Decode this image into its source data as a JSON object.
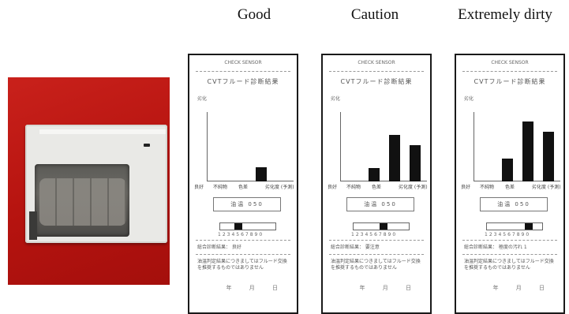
{
  "columns": [
    {
      "title": "Good"
    },
    {
      "title": "Caution"
    },
    {
      "title": "Extremely dirty"
    }
  ],
  "receipts": [
    {
      "header": "CHECK SENSOR",
      "title": "CVTフルード診断結果",
      "subtitle": "劣化",
      "x_labels": [
        "良好",
        "不純物",
        "色差",
        "劣化度 (予測)"
      ],
      "bar_levels": [
        0,
        0,
        0.22,
        0
      ],
      "code": "油温 050",
      "gauge_level": 0.3,
      "gauge_nums": "1234567890",
      "verdict": "総合診断結果： 良好",
      "note": "油温判定結果につきましてはフルード交換を推奨するものではありません",
      "date": "年 月 日"
    },
    {
      "header": "CHECK SENSOR",
      "title": "CVTフルード診断結果",
      "subtitle": "劣化",
      "x_labels": [
        "良好",
        "不純物",
        "色差",
        "劣化度 (予測)"
      ],
      "bar_levels": [
        0,
        0.2,
        0.7,
        0.55
      ],
      "code": "油温 050",
      "gauge_level": 0.55,
      "gauge_nums": "1234567890",
      "verdict": "総合診断結果： 要注意",
      "note": "油温判定結果につきましてはフルード交換を推奨するものではありません",
      "date": "年 月 日"
    },
    {
      "header": "CHECK SENSOR",
      "title": "CVTフルード診断結果",
      "subtitle": "劣化",
      "x_labels": [
        "良好",
        "不純物",
        "色差",
        "劣化度 (予測)"
      ],
      "bar_levels": [
        0,
        0.35,
        0.9,
        0.75
      ],
      "code": "油温 050",
      "gauge_level": 0.8,
      "gauge_nums": "1234567890",
      "verdict": "総合診断結果： 極度の汚れ 1",
      "note": "油温判定結果につきましてはフルード交換を推奨するものではありません",
      "date": "年 月 日"
    }
  ]
}
